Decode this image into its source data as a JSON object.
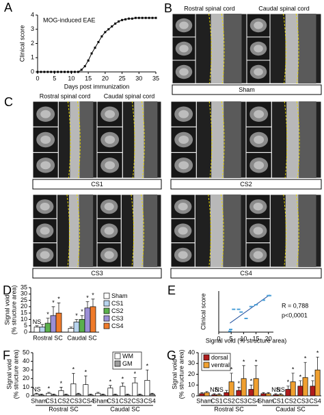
{
  "image_panels": [
    {
      "letter": "B",
      "headers": [
        "Rostral spinal cord",
        "Caudal spinal cord"
      ],
      "labels": [
        "Sham"
      ]
    },
    {
      "letter": "C",
      "headers": [
        "Rostral spinal cord",
        "Caudal spinal cord"
      ],
      "labels": [
        "CS1",
        "CS2",
        "CS3",
        "CS4"
      ]
    }
  ],
  "chart_data": [
    {
      "type": "line",
      "panel": "A",
      "title": "MOG-induced EAE",
      "ylabel": "Clinical score",
      "xlabel": "Days post immunization",
      "x": [
        0,
        1,
        2,
        3,
        4,
        5,
        6,
        7,
        8,
        9,
        10,
        11,
        12,
        13,
        14,
        15,
        16,
        17,
        18,
        19,
        20,
        21,
        22,
        23,
        24,
        25,
        26,
        27,
        28,
        29,
        30,
        31,
        32,
        33,
        34,
        35
      ],
      "values": [
        0,
        0,
        0,
        0,
        0,
        0,
        0,
        0,
        0,
        0,
        0,
        0,
        0,
        0.15,
        0.4,
        0.8,
        1.3,
        1.7,
        2.1,
        2.5,
        2.8,
        3.0,
        3.2,
        3.4,
        3.55,
        3.65,
        3.7,
        3.75,
        3.75,
        3.8,
        3.8,
        3.8,
        3.8,
        3.8,
        3.8,
        3.8
      ],
      "color": "#000000",
      "xlim": [
        0,
        35
      ],
      "xticks": [
        0,
        5,
        10,
        15,
        20,
        25,
        30,
        35
      ],
      "ylim": [
        0,
        4
      ],
      "yticks": [
        0,
        1,
        2,
        3,
        4
      ]
    },
    {
      "type": "bar",
      "panel": "D",
      "ylabel": [
        "Signal void",
        "(% structure area)"
      ],
      "groups": [
        "Rostral SC",
        "Caudal SC"
      ],
      "ylim": [
        0,
        35
      ],
      "yticks": [
        0,
        5,
        10,
        15,
        20,
        25,
        30,
        35
      ],
      "series": [
        {
          "name": "Sham",
          "color": "#ffffff",
          "values": [
            4,
            3
          ],
          "errors": [
            1,
            1
          ],
          "labels": [
            "NS",
            null
          ]
        },
        {
          "name": "CS1",
          "color": "#b8d4ee",
          "values": [
            4,
            8
          ],
          "errors": [
            2,
            2
          ],
          "labels": [
            null,
            "*"
          ]
        },
        {
          "name": "CS2",
          "color": "#5bb04d",
          "values": [
            7,
            10
          ],
          "errors": [
            4,
            3
          ],
          "labels": [
            "*",
            "*"
          ]
        },
        {
          "name": "CS3",
          "color": "#9b8fd6",
          "values": [
            13,
            19
          ],
          "errors": [
            7,
            5
          ],
          "labels": [
            "*",
            "*"
          ]
        },
        {
          "name": "CS4",
          "color": "#f07b2a",
          "values": [
            15,
            20
          ],
          "errors": [
            8,
            6
          ],
          "labels": [
            "*",
            "*"
          ]
        }
      ]
    },
    {
      "type": "scatter",
      "panel": "E",
      "ylabel": "Clinical score",
      "xlabel": "Signal void (% structure area)",
      "annotations": [
        "R = 0,788",
        "p<0,0001"
      ],
      "x": [
        4.5,
        4.8,
        6,
        8,
        9,
        11,
        13,
        15,
        18,
        20,
        20.5
      ],
      "values": [
        0.1,
        0.3,
        2.5,
        2.5,
        2.2,
        1.5,
        2.8,
        3,
        3.5,
        4,
        4
      ],
      "color": "#4a9fd8",
      "xlim": [
        0,
        22
      ],
      "xticks": [
        0,
        5,
        10,
        15,
        20
      ],
      "ylim": [
        0,
        4.5
      ]
    },
    {
      "type": "bar",
      "panel": "F",
      "ylabel": [
        "Signal void",
        "(% structure area)"
      ],
      "groups": [
        "Rostral SC",
        "Caudal SC"
      ],
      "categories": [
        "Sham",
        "CS1",
        "CS2",
        "CS3",
        "CS4",
        "Sham",
        "CS1",
        "CS2",
        "CS3",
        "CS4"
      ],
      "ylim": [
        0,
        50
      ],
      "yticks": [
        0,
        10,
        20,
        30,
        40,
        50
      ],
      "series": [
        {
          "name": "WM",
          "color": "#ffffff",
          "values": [
            2,
            3,
            6,
            14,
            13,
            3,
            9,
            11,
            15,
            18
          ],
          "errors": [
            1,
            1,
            4,
            12,
            10,
            1,
            3,
            4,
            6,
            12
          ],
          "labels": [
            "NS",
            "*",
            "*",
            "*",
            "*",
            null,
            "*",
            "*",
            "*",
            "*"
          ]
        },
        {
          "name": "GM",
          "color": "#9e9e9e",
          "values": [
            1,
            1,
            1,
            2,
            1,
            1,
            1,
            1,
            1,
            2
          ],
          "errors": [
            1,
            1,
            1,
            1,
            1,
            1,
            1,
            1,
            1,
            1
          ]
        }
      ]
    },
    {
      "type": "bar",
      "panel": "G",
      "ylabel": [
        "Signal void",
        "(% structure area)"
      ],
      "groups": [
        "Rostral SC",
        "Caudal SC"
      ],
      "categories": [
        "Sham",
        "CS1",
        "CS2",
        "CS3",
        "CS4",
        "Sham",
        "CS1",
        "CS2",
        "CS3",
        "CS4"
      ],
      "ylim": [
        0,
        40
      ],
      "yticks": [
        0,
        10,
        20,
        30,
        40
      ],
      "series": [
        {
          "name": "dorsal",
          "color": "#b01c1c",
          "values": [
            2,
            1,
            3,
            5,
            6,
            2,
            1,
            6,
            9,
            9
          ],
          "errors": [
            1,
            1,
            2,
            3,
            4,
            1,
            1,
            3,
            5,
            5
          ],
          "labels": [
            null,
            "NS",
            null,
            "*",
            "*",
            null,
            "NS",
            "*",
            "*",
            "*"
          ]
        },
        {
          "name": "ventral",
          "color": "#f0a030",
          "values": [
            3,
            1,
            13,
            16,
            16,
            2,
            1,
            13,
            17,
            24
          ],
          "errors": [
            1,
            1,
            8,
            12,
            12,
            1,
            1,
            8,
            14,
            12
          ],
          "labels": [
            null,
            "NS",
            "*",
            "*",
            "*",
            null,
            "NS",
            "*",
            "*",
            "*"
          ]
        }
      ]
    }
  ]
}
